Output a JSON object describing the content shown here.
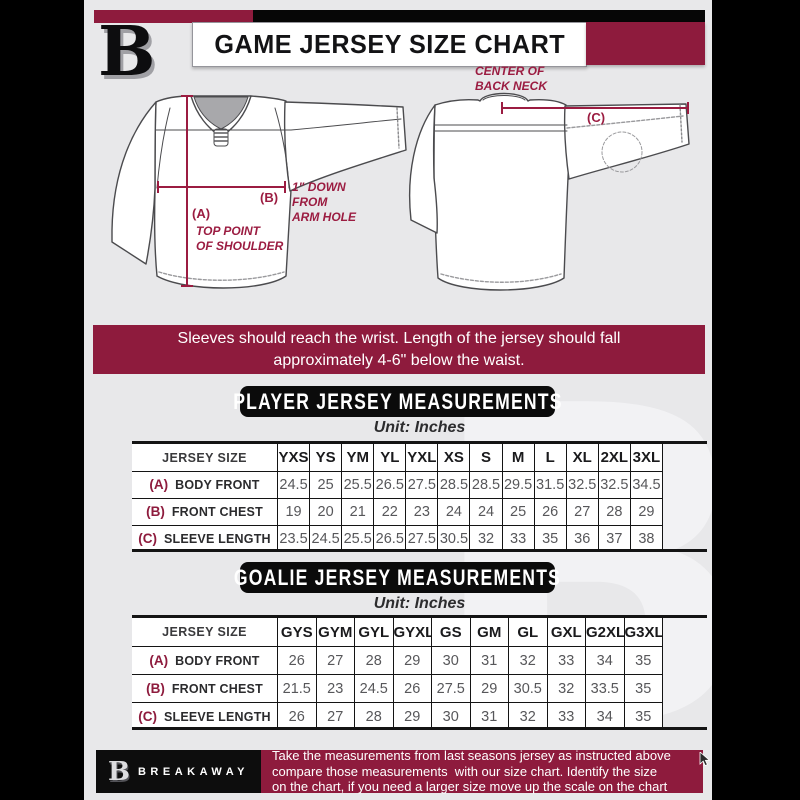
{
  "header": {
    "logo_letter": "B",
    "title": "GAME JERSEY SIZE CHART"
  },
  "annotations": {
    "a_key": "(A)",
    "a_text": "TOP POINT\nOF SHOULDER",
    "b_key": "(B)",
    "b_text": "1\" DOWN\nFROM\nARM HOLE",
    "c_key": "(C)",
    "c_text": "CENTER OF\nBACK NECK"
  },
  "notice": "Sleeves should reach the wrist. Length of the jersey should fall\napproximately 4-6\" below the waist.",
  "player_section": {
    "title": "PLAYER JERSEY MEASUREMENTS",
    "unit": "Unit: Inches"
  },
  "goalie_section": {
    "title": "GOALIE JERSEY MEASUREMENTS",
    "unit": "Unit: Inches"
  },
  "player_table": {
    "header": "JERSEY SIZE",
    "sizes": [
      "YXS",
      "YS",
      "YM",
      "YL",
      "YXL",
      "XS",
      "S",
      "M",
      "L",
      "XL",
      "2XL",
      "3XL"
    ],
    "rows": [
      {
        "key": "(A)",
        "label": "BODY FRONT",
        "values": [
          "24.5",
          "25",
          "25.5",
          "26.5",
          "27.5",
          "28.5",
          "28.5",
          "29.5",
          "31.5",
          "32.5",
          "32.5",
          "34.5"
        ]
      },
      {
        "key": "(B)",
        "label": "FRONT CHEST",
        "values": [
          "19",
          "20",
          "21",
          "22",
          "23",
          "24",
          "24",
          "25",
          "26",
          "27",
          "28",
          "29"
        ]
      },
      {
        "key": "(C)",
        "label": "SLEEVE LENGTH",
        "values": [
          "23.5",
          "24.5",
          "25.5",
          "26.5",
          "27.5",
          "30.5",
          "32",
          "33",
          "35",
          "36",
          "37",
          "38"
        ]
      }
    ]
  },
  "goalie_table": {
    "header": "JERSEY SIZE",
    "sizes": [
      "GYS",
      "GYM",
      "GYL",
      "GYXL",
      "GS",
      "GM",
      "GL",
      "GXL",
      "G2XL",
      "G3XL"
    ],
    "rows": [
      {
        "key": "(A)",
        "label": "BODY FRONT",
        "values": [
          "26",
          "27",
          "28",
          "29",
          "30",
          "31",
          "32",
          "33",
          "34",
          "35"
        ]
      },
      {
        "key": "(B)",
        "label": "FRONT CHEST",
        "values": [
          "21.5",
          "23",
          "24.5",
          "26",
          "27.5",
          "29",
          "30.5",
          "32",
          "33.5",
          "35"
        ]
      },
      {
        "key": "(C)",
        "label": "SLEEVE LENGTH",
        "values": [
          "26",
          "27",
          "28",
          "29",
          "30",
          "31",
          "32",
          "33",
          "34",
          "35"
        ]
      }
    ]
  },
  "footer": {
    "logo_letter": "B",
    "brand": "BREAKAWAY",
    "note": "Take the measurements from last seasons jersey as instructed above\ncompare those measurements  with our size chart. Identify the size\non the chart, if you need a larger size move up the scale on the chart"
  },
  "watermark_letter": "B",
  "colors": {
    "maroon": "#8E1B3D",
    "black": "#0B0B0B",
    "page_bg": "#E8E8EA",
    "annotation_red": "#9B1C41",
    "white": "#FFFFFF"
  }
}
